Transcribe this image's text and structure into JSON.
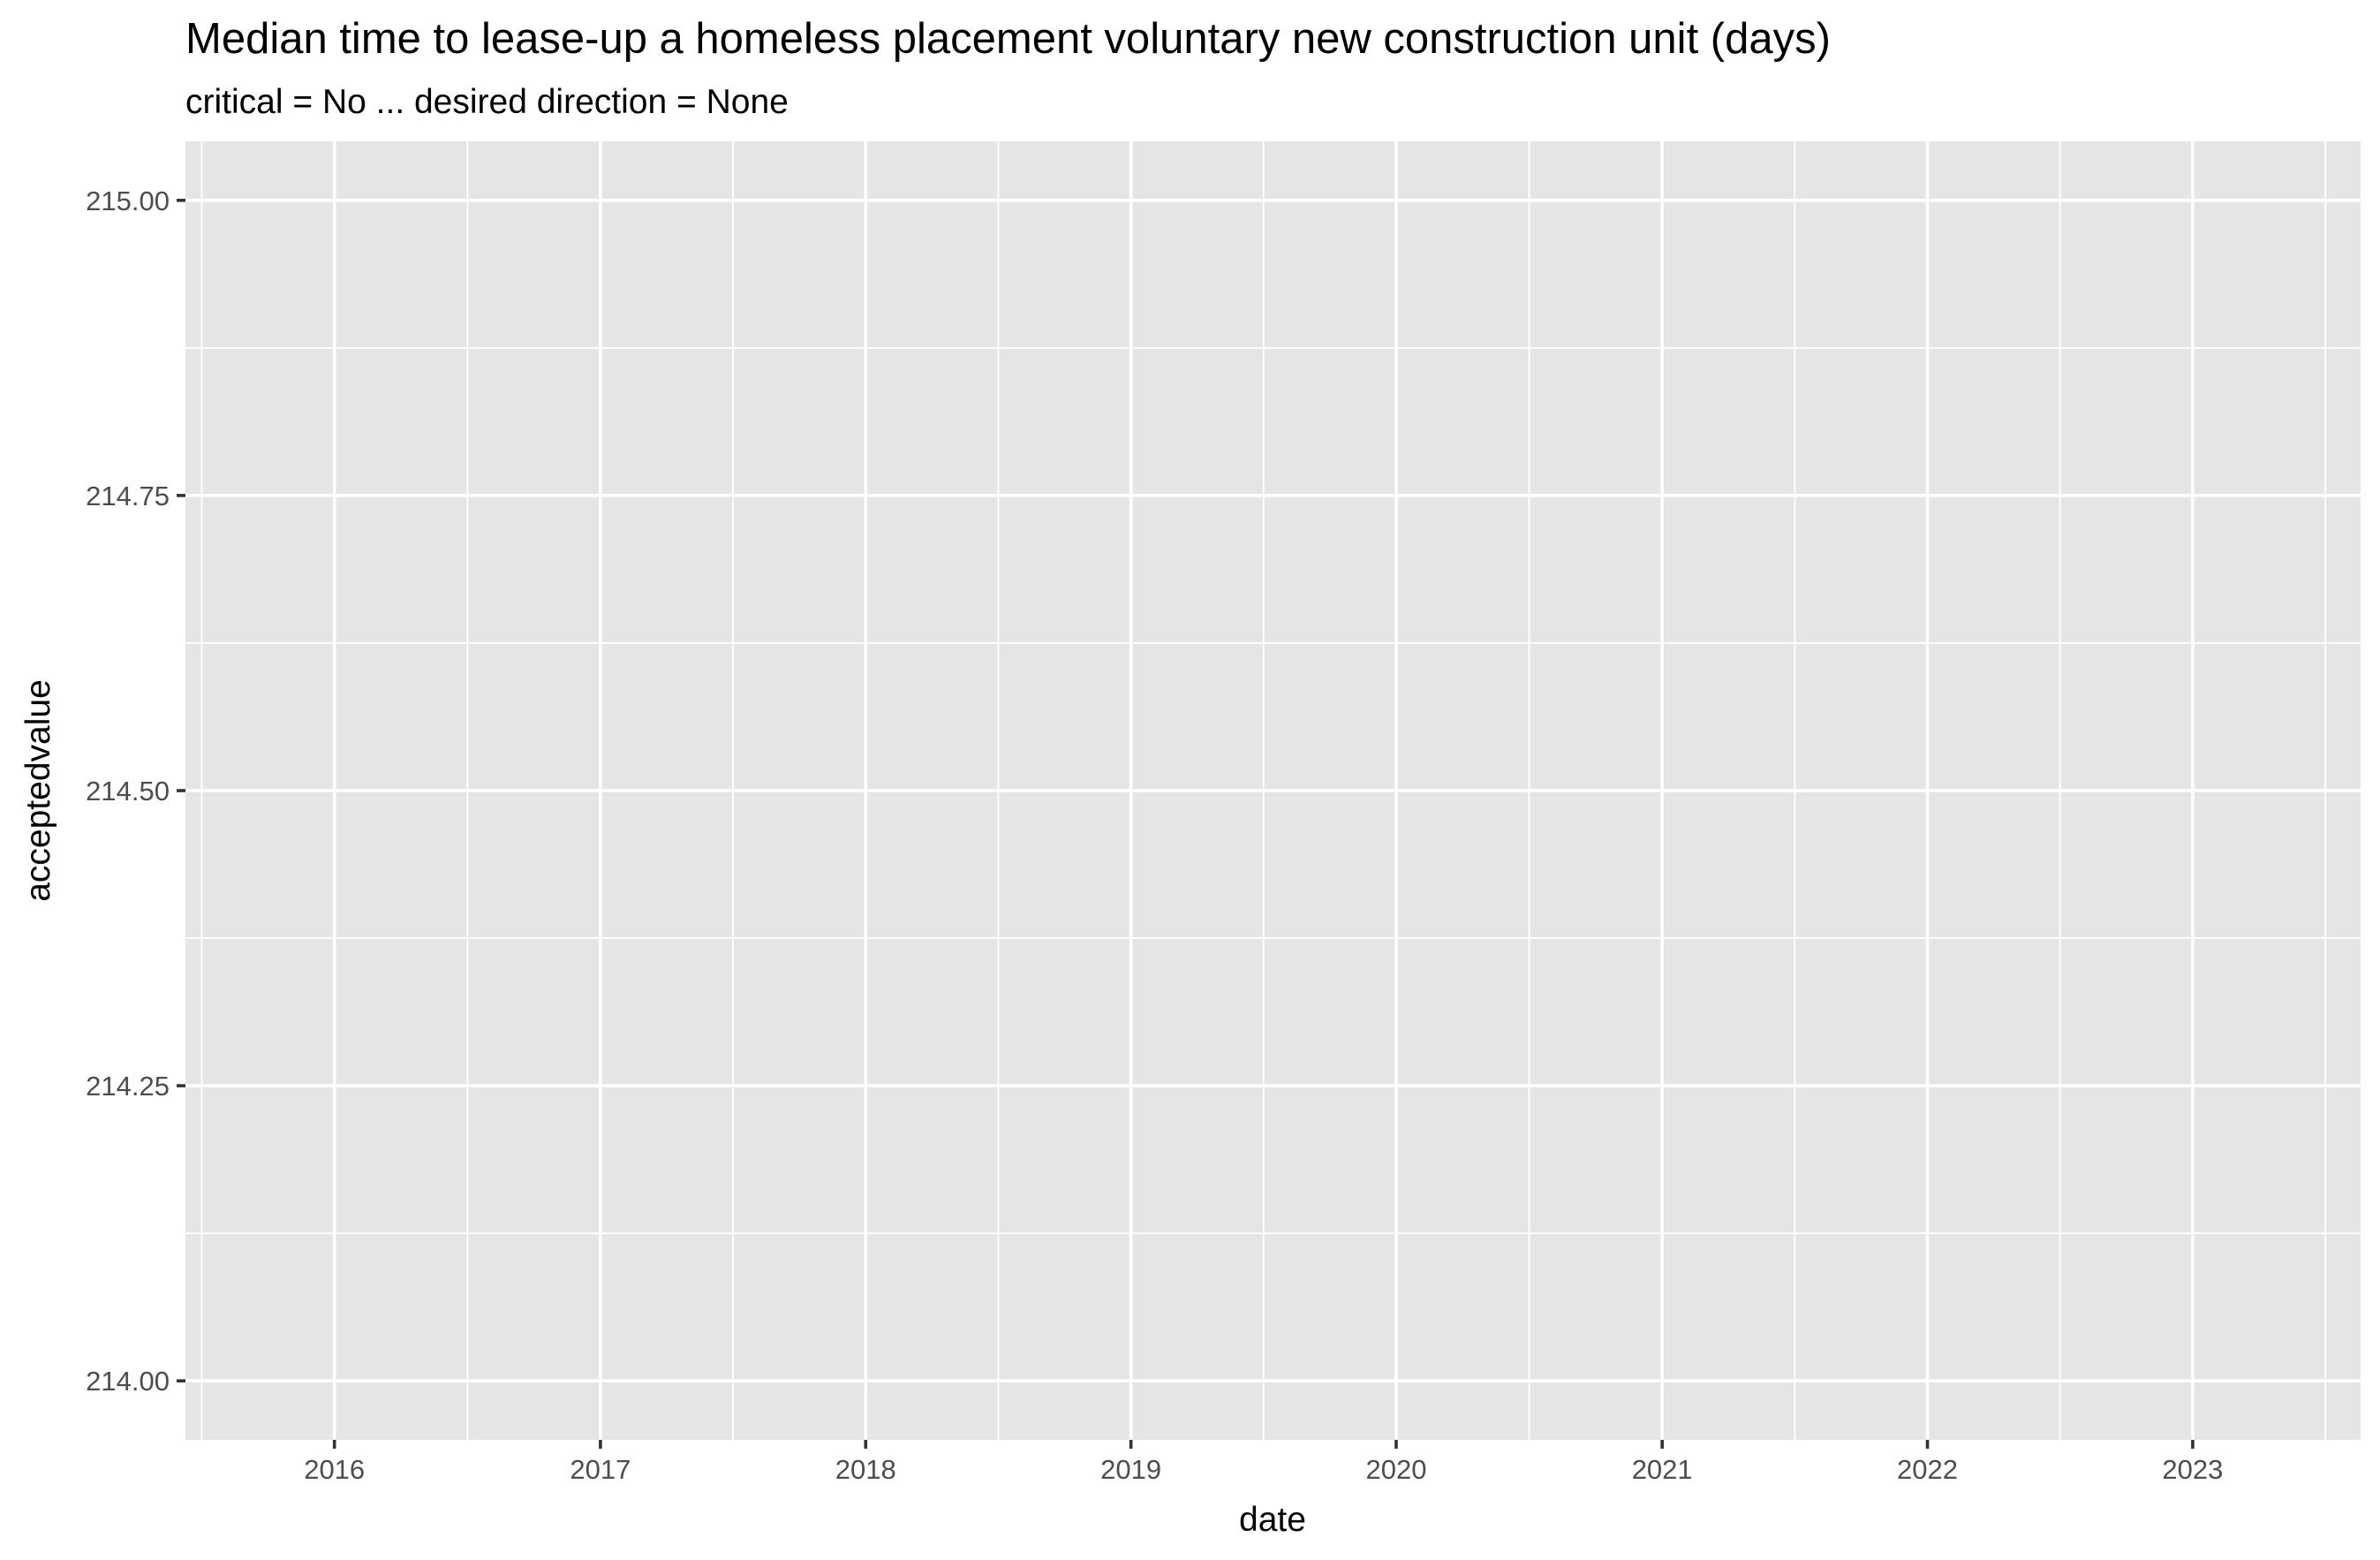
{
  "chart_data": {
    "type": "line",
    "title": "Median time to lease-up a homeless placement voluntary new construction unit (days)",
    "subtitle": "critical = No ... desired direction = None",
    "xlabel": "date",
    "ylabel": "acceptedvalue",
    "x_axis_type": "date",
    "xlim": [
      "2015-06-10",
      "2023-08-20"
    ],
    "ylim": [
      213.95,
      215.05
    ],
    "x_ticks": [
      "2016",
      "2017",
      "2018",
      "2019",
      "2020",
      "2021",
      "2022",
      "2023"
    ],
    "y_ticks": [
      "214.00",
      "214.25",
      "214.50",
      "214.75",
      "215.00"
    ],
    "y_tick_values": [
      214.0,
      214.25,
      214.5,
      214.75,
      215.0
    ],
    "grid": true,
    "series": [],
    "colors": {
      "panel_background": "#e5e5e5",
      "grid_line": "#ffffff",
      "tick_mark": "#333333",
      "tick_label": "#4d4d4d"
    }
  }
}
